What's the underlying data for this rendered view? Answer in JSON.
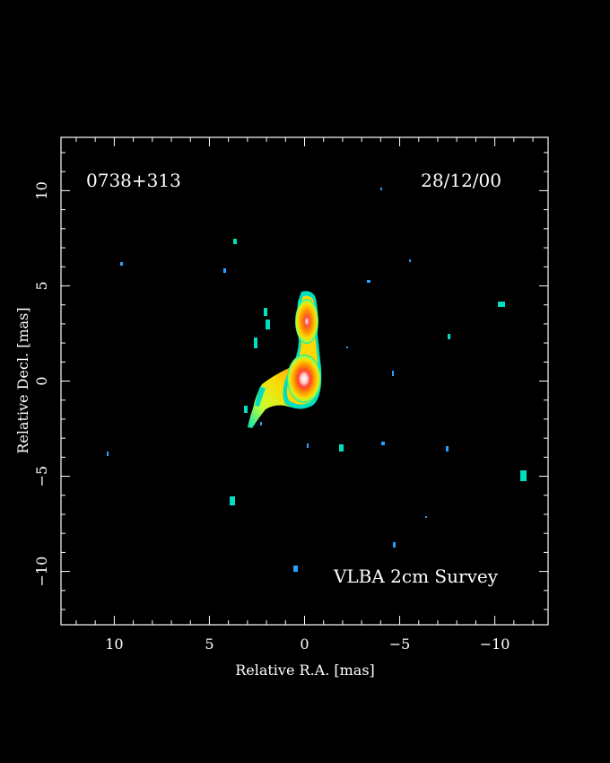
{
  "source_name": "0738+313",
  "observation_date": "28/12/00",
  "survey_label": "VLBA 2cm Survey",
  "axes": {
    "x_label": "Relative R.A. [mas]",
    "y_label": "Relative Decl. [mas]",
    "x_range": [
      12.8,
      -12.8
    ],
    "y_range": [
      -12.8,
      12.8
    ],
    "x_ticks": [
      {
        "value": 10,
        "label": "10"
      },
      {
        "value": 5,
        "label": "5"
      },
      {
        "value": 0,
        "label": "0"
      },
      {
        "value": -5,
        "label": "−5"
      },
      {
        "value": -10,
        "label": "−10"
      }
    ],
    "y_ticks": [
      {
        "value": 10,
        "label": "10"
      },
      {
        "value": 5,
        "label": "5"
      },
      {
        "value": 0,
        "label": "0"
      },
      {
        "value": -5,
        "label": "−5"
      },
      {
        "value": -10,
        "label": "−10"
      }
    ]
  },
  "colors": {
    "background": "#000000",
    "frame": "#ffffff",
    "emission_low": "#00e0c0",
    "emission_mid": "#ffd000",
    "emission_high": "#ff2000",
    "emission_peak": "#ffffff",
    "noise": "#2aa0ff"
  }
}
